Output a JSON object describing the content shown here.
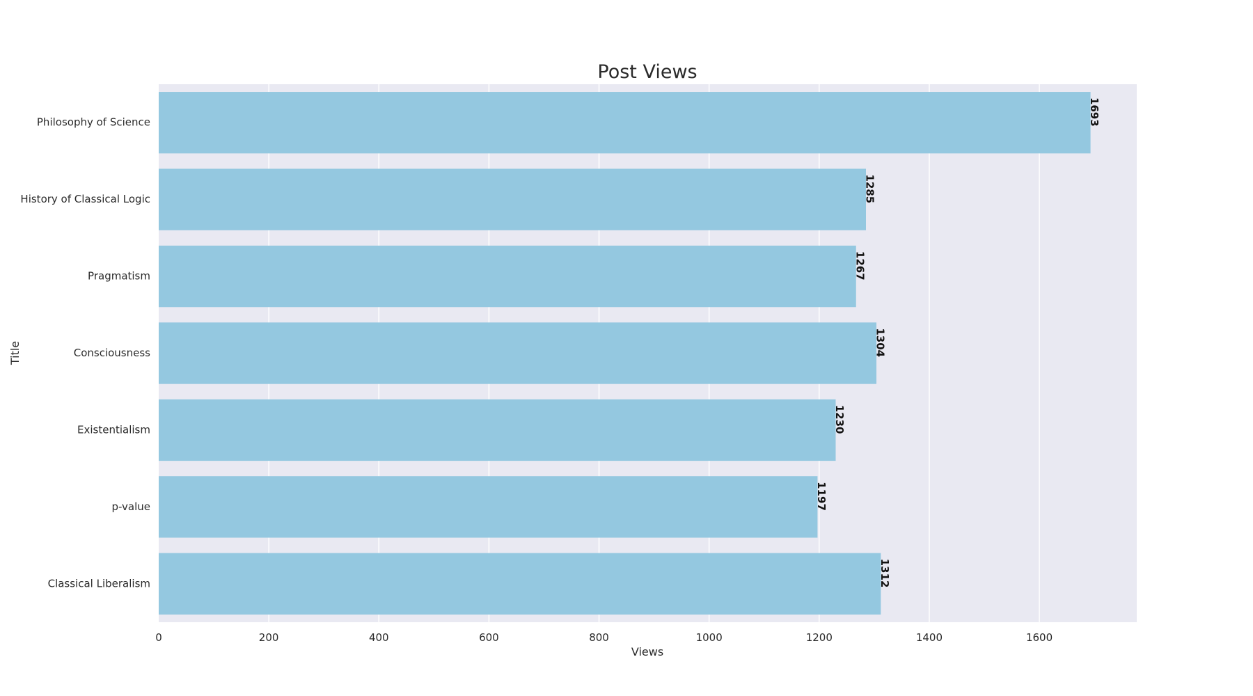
{
  "chart_data": {
    "type": "bar",
    "orientation": "horizontal",
    "title": "Post Views",
    "xlabel": "Views",
    "ylabel": "Title",
    "categories": [
      "Philosophy of Science",
      "History of Classical Logic",
      "Pragmatism",
      "Consciousness",
      "Existentialism",
      "p-value",
      "Classical Liberalism"
    ],
    "values": [
      1693,
      1285,
      1267,
      1304,
      1230,
      1197,
      1312
    ],
    "xlim": [
      0,
      1777
    ],
    "xticks": [
      0,
      200,
      400,
      600,
      800,
      1000,
      1200,
      1400,
      1600
    ],
    "grid": true,
    "bar_color": "#94c8e0",
    "plot_background": "#e9e9f2",
    "grid_color": "#ffffff",
    "label_color": "#111111"
  }
}
